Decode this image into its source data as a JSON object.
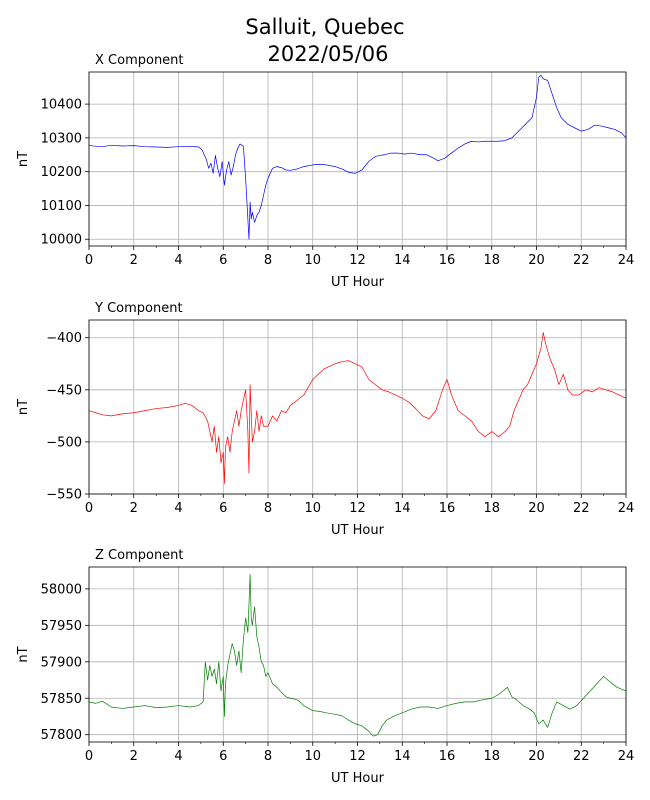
{
  "figure": {
    "title_line1": "Salluit, Quebec",
    "title_line2": "2022/05/06"
  },
  "chart_data": [
    {
      "type": "line",
      "title": "X Component",
      "xlabel": "UT Hour",
      "ylabel": "nT",
      "color": "#0000ff",
      "xlim": [
        0,
        24
      ],
      "ylim": [
        9980,
        10495
      ],
      "xticks": [
        0,
        2,
        4,
        6,
        8,
        10,
        12,
        14,
        16,
        18,
        20,
        22,
        24
      ],
      "yticks": [
        10000,
        10100,
        10200,
        10300,
        10400
      ],
      "grid": true,
      "series": [
        {
          "x": [
            0,
            0.3,
            0.6,
            1.0,
            1.5,
            2.0,
            2.5,
            3.0,
            3.5,
            4.0,
            4.5,
            4.9,
            5.05,
            5.15,
            5.25,
            5.35,
            5.45,
            5.55,
            5.65,
            5.75,
            5.85,
            5.95,
            6.05,
            6.15,
            6.25,
            6.35,
            6.45,
            6.55,
            6.65,
            6.75,
            6.9,
            7.0,
            7.1,
            7.15,
            7.2,
            7.25,
            7.3,
            7.4,
            7.5,
            7.6,
            7.7,
            7.8,
            7.9,
            8.0,
            8.2,
            8.4,
            8.6,
            8.8,
            9.0,
            9.3,
            9.6,
            10.0,
            10.3,
            10.6,
            11.0,
            11.3,
            11.6,
            11.9,
            12.2,
            12.5,
            12.8,
            13.0,
            13.2,
            13.5,
            13.8,
            14.1,
            14.4,
            14.8,
            15.1,
            15.4,
            15.6,
            15.9,
            16.2,
            16.5,
            16.8,
            17.1,
            17.4,
            17.7,
            18.0,
            18.3,
            18.6,
            18.9,
            19.2,
            19.5,
            19.8,
            20.0,
            20.1,
            20.2,
            20.3,
            20.5,
            20.7,
            20.9,
            21.1,
            21.4,
            21.7,
            22.0,
            22.3,
            22.6,
            22.9,
            23.2,
            23.5,
            23.8,
            24.0
          ],
          "values": [
            10278,
            10275,
            10274,
            10278,
            10276,
            10277,
            10274,
            10273,
            10272,
            10274,
            10275,
            10273,
            10265,
            10250,
            10235,
            10210,
            10225,
            10195,
            10248,
            10210,
            10185,
            10230,
            10160,
            10205,
            10230,
            10190,
            10215,
            10250,
            10270,
            10282,
            10275,
            10180,
            10060,
            10000,
            10110,
            10060,
            10080,
            10050,
            10070,
            10080,
            10100,
            10130,
            10160,
            10180,
            10210,
            10215,
            10212,
            10205,
            10204,
            10208,
            10215,
            10220,
            10222,
            10220,
            10215,
            10208,
            10198,
            10195,
            10205,
            10230,
            10245,
            10248,
            10250,
            10255,
            10255,
            10252,
            10255,
            10250,
            10250,
            10240,
            10232,
            10240,
            10255,
            10270,
            10282,
            10290,
            10288,
            10290,
            10290,
            10290,
            10292,
            10300,
            10320,
            10340,
            10360,
            10420,
            10480,
            10485,
            10475,
            10470,
            10430,
            10390,
            10360,
            10340,
            10330,
            10320,
            10325,
            10338,
            10335,
            10330,
            10325,
            10315,
            10300
          ]
        }
      ]
    },
    {
      "type": "line",
      "title": "Y Component",
      "xlabel": "UT Hour",
      "ylabel": "nT",
      "color": "#ff0000",
      "xlim": [
        0,
        24
      ],
      "ylim": [
        -550,
        -383
      ],
      "xticks": [
        0,
        2,
        4,
        6,
        8,
        10,
        12,
        14,
        16,
        18,
        20,
        22,
        24
      ],
      "yticks": [
        -550,
        -500,
        -450,
        -400
      ],
      "grid": true,
      "series": [
        {
          "x": [
            0,
            0.3,
            0.6,
            1.0,
            1.5,
            2.0,
            2.5,
            3.0,
            3.5,
            4.0,
            4.3,
            4.6,
            4.9,
            5.1,
            5.3,
            5.4,
            5.5,
            5.6,
            5.7,
            5.8,
            5.9,
            6.0,
            6.05,
            6.1,
            6.2,
            6.3,
            6.4,
            6.5,
            6.6,
            6.7,
            6.8,
            6.9,
            7.0,
            7.1,
            7.15,
            7.2,
            7.3,
            7.4,
            7.5,
            7.6,
            7.7,
            7.8,
            8.0,
            8.2,
            8.4,
            8.6,
            8.8,
            9.0,
            9.3,
            9.6,
            10.0,
            10.5,
            11.0,
            11.3,
            11.6,
            11.9,
            12.2,
            12.5,
            12.8,
            13.1,
            13.4,
            13.7,
            14.0,
            14.3,
            14.6,
            14.9,
            15.2,
            15.5,
            15.8,
            16.0,
            16.2,
            16.5,
            16.8,
            17.1,
            17.4,
            17.7,
            18.0,
            18.3,
            18.6,
            18.8,
            19.0,
            19.2,
            19.4,
            19.6,
            19.8,
            20.0,
            20.2,
            20.3,
            20.4,
            20.6,
            20.8,
            21.0,
            21.2,
            21.4,
            21.6,
            21.9,
            22.2,
            22.5,
            22.8,
            23.1,
            23.4,
            23.7,
            24.0
          ],
          "values": [
            -470,
            -472,
            -474,
            -475,
            -473,
            -472,
            -470,
            -468,
            -467,
            -465,
            -463,
            -465,
            -470,
            -472,
            -480,
            -490,
            -500,
            -485,
            -510,
            -495,
            -520,
            -510,
            -540,
            -505,
            -495,
            -510,
            -490,
            -480,
            -470,
            -485,
            -470,
            -460,
            -450,
            -490,
            -530,
            -445,
            -500,
            -490,
            -470,
            -490,
            -475,
            -485,
            -485,
            -475,
            -480,
            -470,
            -472,
            -465,
            -460,
            -455,
            -440,
            -430,
            -425,
            -423,
            -422,
            -425,
            -428,
            -440,
            -445,
            -450,
            -452,
            -455,
            -458,
            -462,
            -468,
            -475,
            -478,
            -470,
            -450,
            -440,
            -455,
            -470,
            -475,
            -480,
            -490,
            -495,
            -490,
            -495,
            -490,
            -485,
            -470,
            -460,
            -450,
            -445,
            -435,
            -425,
            -410,
            -395,
            -405,
            -420,
            -430,
            -445,
            -435,
            -450,
            -455,
            -455,
            -450,
            -452,
            -448,
            -450,
            -452,
            -455,
            -458
          ]
        }
      ]
    },
    {
      "type": "line",
      "title": "Z Component",
      "xlabel": "UT Hour",
      "ylabel": "nT",
      "color": "#008000",
      "xlim": [
        0,
        24
      ],
      "ylim": [
        57790,
        58030
      ],
      "xticks": [
        0,
        2,
        4,
        6,
        8,
        10,
        12,
        14,
        16,
        18,
        20,
        22,
        24
      ],
      "yticks": [
        57800,
        57850,
        57900,
        57950,
        58000
      ],
      "grid": true,
      "series": [
        {
          "x": [
            0,
            0.3,
            0.6,
            1.0,
            1.5,
            2.0,
            2.5,
            3.0,
            3.5,
            4.0,
            4.5,
            4.9,
            5.1,
            5.2,
            5.3,
            5.4,
            5.5,
            5.6,
            5.7,
            5.8,
            5.9,
            6.0,
            6.05,
            6.1,
            6.2,
            6.3,
            6.4,
            6.5,
            6.6,
            6.7,
            6.8,
            6.9,
            7.0,
            7.1,
            7.2,
            7.25,
            7.3,
            7.4,
            7.5,
            7.6,
            7.7,
            7.8,
            7.9,
            8.0,
            8.2,
            8.4,
            8.6,
            8.8,
            9.0,
            9.3,
            9.6,
            10.0,
            10.3,
            10.6,
            11.0,
            11.3,
            11.6,
            11.9,
            12.2,
            12.5,
            12.7,
            12.9,
            13.1,
            13.3,
            13.6,
            14.0,
            14.4,
            14.8,
            15.2,
            15.6,
            16.0,
            16.4,
            16.8,
            17.2,
            17.6,
            18.0,
            18.3,
            18.5,
            18.7,
            18.9,
            19.1,
            19.4,
            19.7,
            19.9,
            20.1,
            20.3,
            20.5,
            20.7,
            20.9,
            21.2,
            21.5,
            21.8,
            22.1,
            22.4,
            22.7,
            23.0,
            23.3,
            23.6,
            24.0
          ],
          "values": [
            57845,
            57843,
            57846,
            57838,
            57836,
            57838,
            57840,
            57837,
            57838,
            57840,
            57838,
            57840,
            57845,
            57900,
            57875,
            57895,
            57880,
            57890,
            57870,
            57900,
            57860,
            57880,
            57825,
            57870,
            57895,
            57910,
            57925,
            57915,
            57895,
            57915,
            57885,
            57930,
            57960,
            57940,
            58020,
            57960,
            57950,
            57975,
            57935,
            57920,
            57900,
            57895,
            57880,
            57885,
            57870,
            57865,
            57858,
            57852,
            57850,
            57848,
            57840,
            57833,
            57832,
            57830,
            57828,
            57826,
            57820,
            57815,
            57812,
            57805,
            57798,
            57800,
            57812,
            57820,
            57825,
            57830,
            57835,
            57838,
            57838,
            57836,
            57840,
            57843,
            57845,
            57845,
            57848,
            57850,
            57855,
            57860,
            57865,
            57852,
            57848,
            57840,
            57835,
            57830,
            57815,
            57820,
            57810,
            57830,
            57845,
            57840,
            57835,
            57840,
            57850,
            57860,
            57870,
            57880,
            57872,
            57865,
            57860
          ]
        }
      ]
    }
  ]
}
